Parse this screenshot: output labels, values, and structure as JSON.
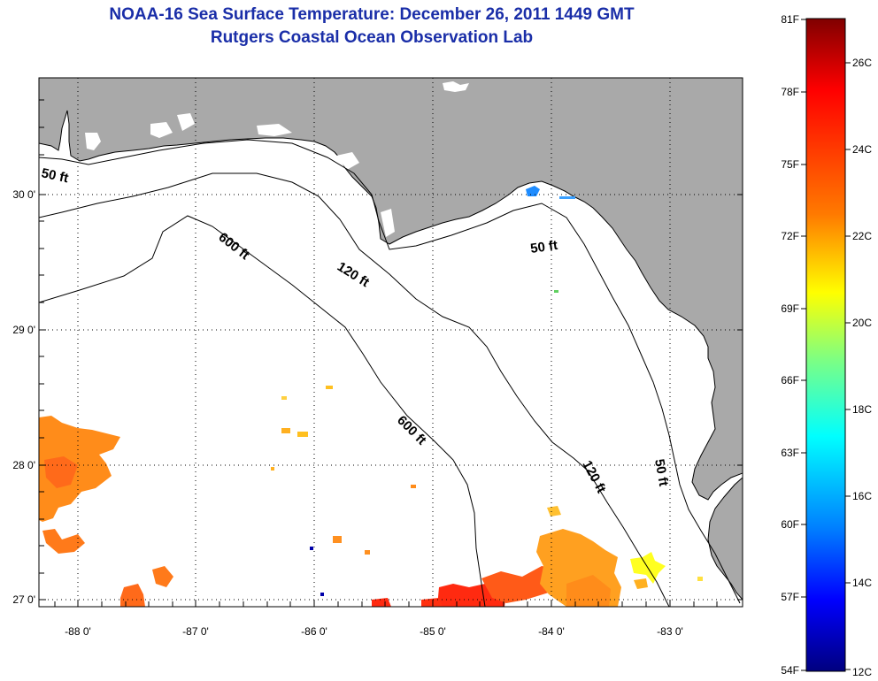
{
  "title": {
    "line1": "NOAA-16 Sea Surface Temperature:  December 26, 2011 1449 GMT",
    "line2": "Rutgers Coastal Ocean Observation Lab"
  },
  "map": {
    "lon_ticks": [
      "-88 0'",
      "-87 0'",
      "-86 0'",
      "-85 0'",
      "-84 0'",
      "-83 0'"
    ],
    "lat_ticks": [
      "30 0'",
      "29 0'",
      "28 0'",
      "27 0'"
    ],
    "grid": "dotted",
    "land_color": "#a9a9a9",
    "ocean_color": "#ffffff",
    "contour_labels": {
      "c50_west": "50 ft",
      "c600_north": "600 ft",
      "c120_north": "120 ft",
      "c50_north": "50 ft",
      "c600_south": "600 ft",
      "c120_south": "120 ft",
      "c50_south": "50 ft"
    }
  },
  "colorbar": {
    "fahrenheit": [
      "81F",
      "78F",
      "75F",
      "72F",
      "69F",
      "66F",
      "63F",
      "60F",
      "57F",
      "54F"
    ],
    "celsius": [
      "26C",
      "24C",
      "22C",
      "20C",
      "18C",
      "16C",
      "14C",
      "12C"
    ],
    "colors": [
      "#800000",
      "#ff0000",
      "#ff8000",
      "#ffff00",
      "#80ff80",
      "#00ffff",
      "#0080ff",
      "#0000ff",
      "#000080"
    ]
  }
}
